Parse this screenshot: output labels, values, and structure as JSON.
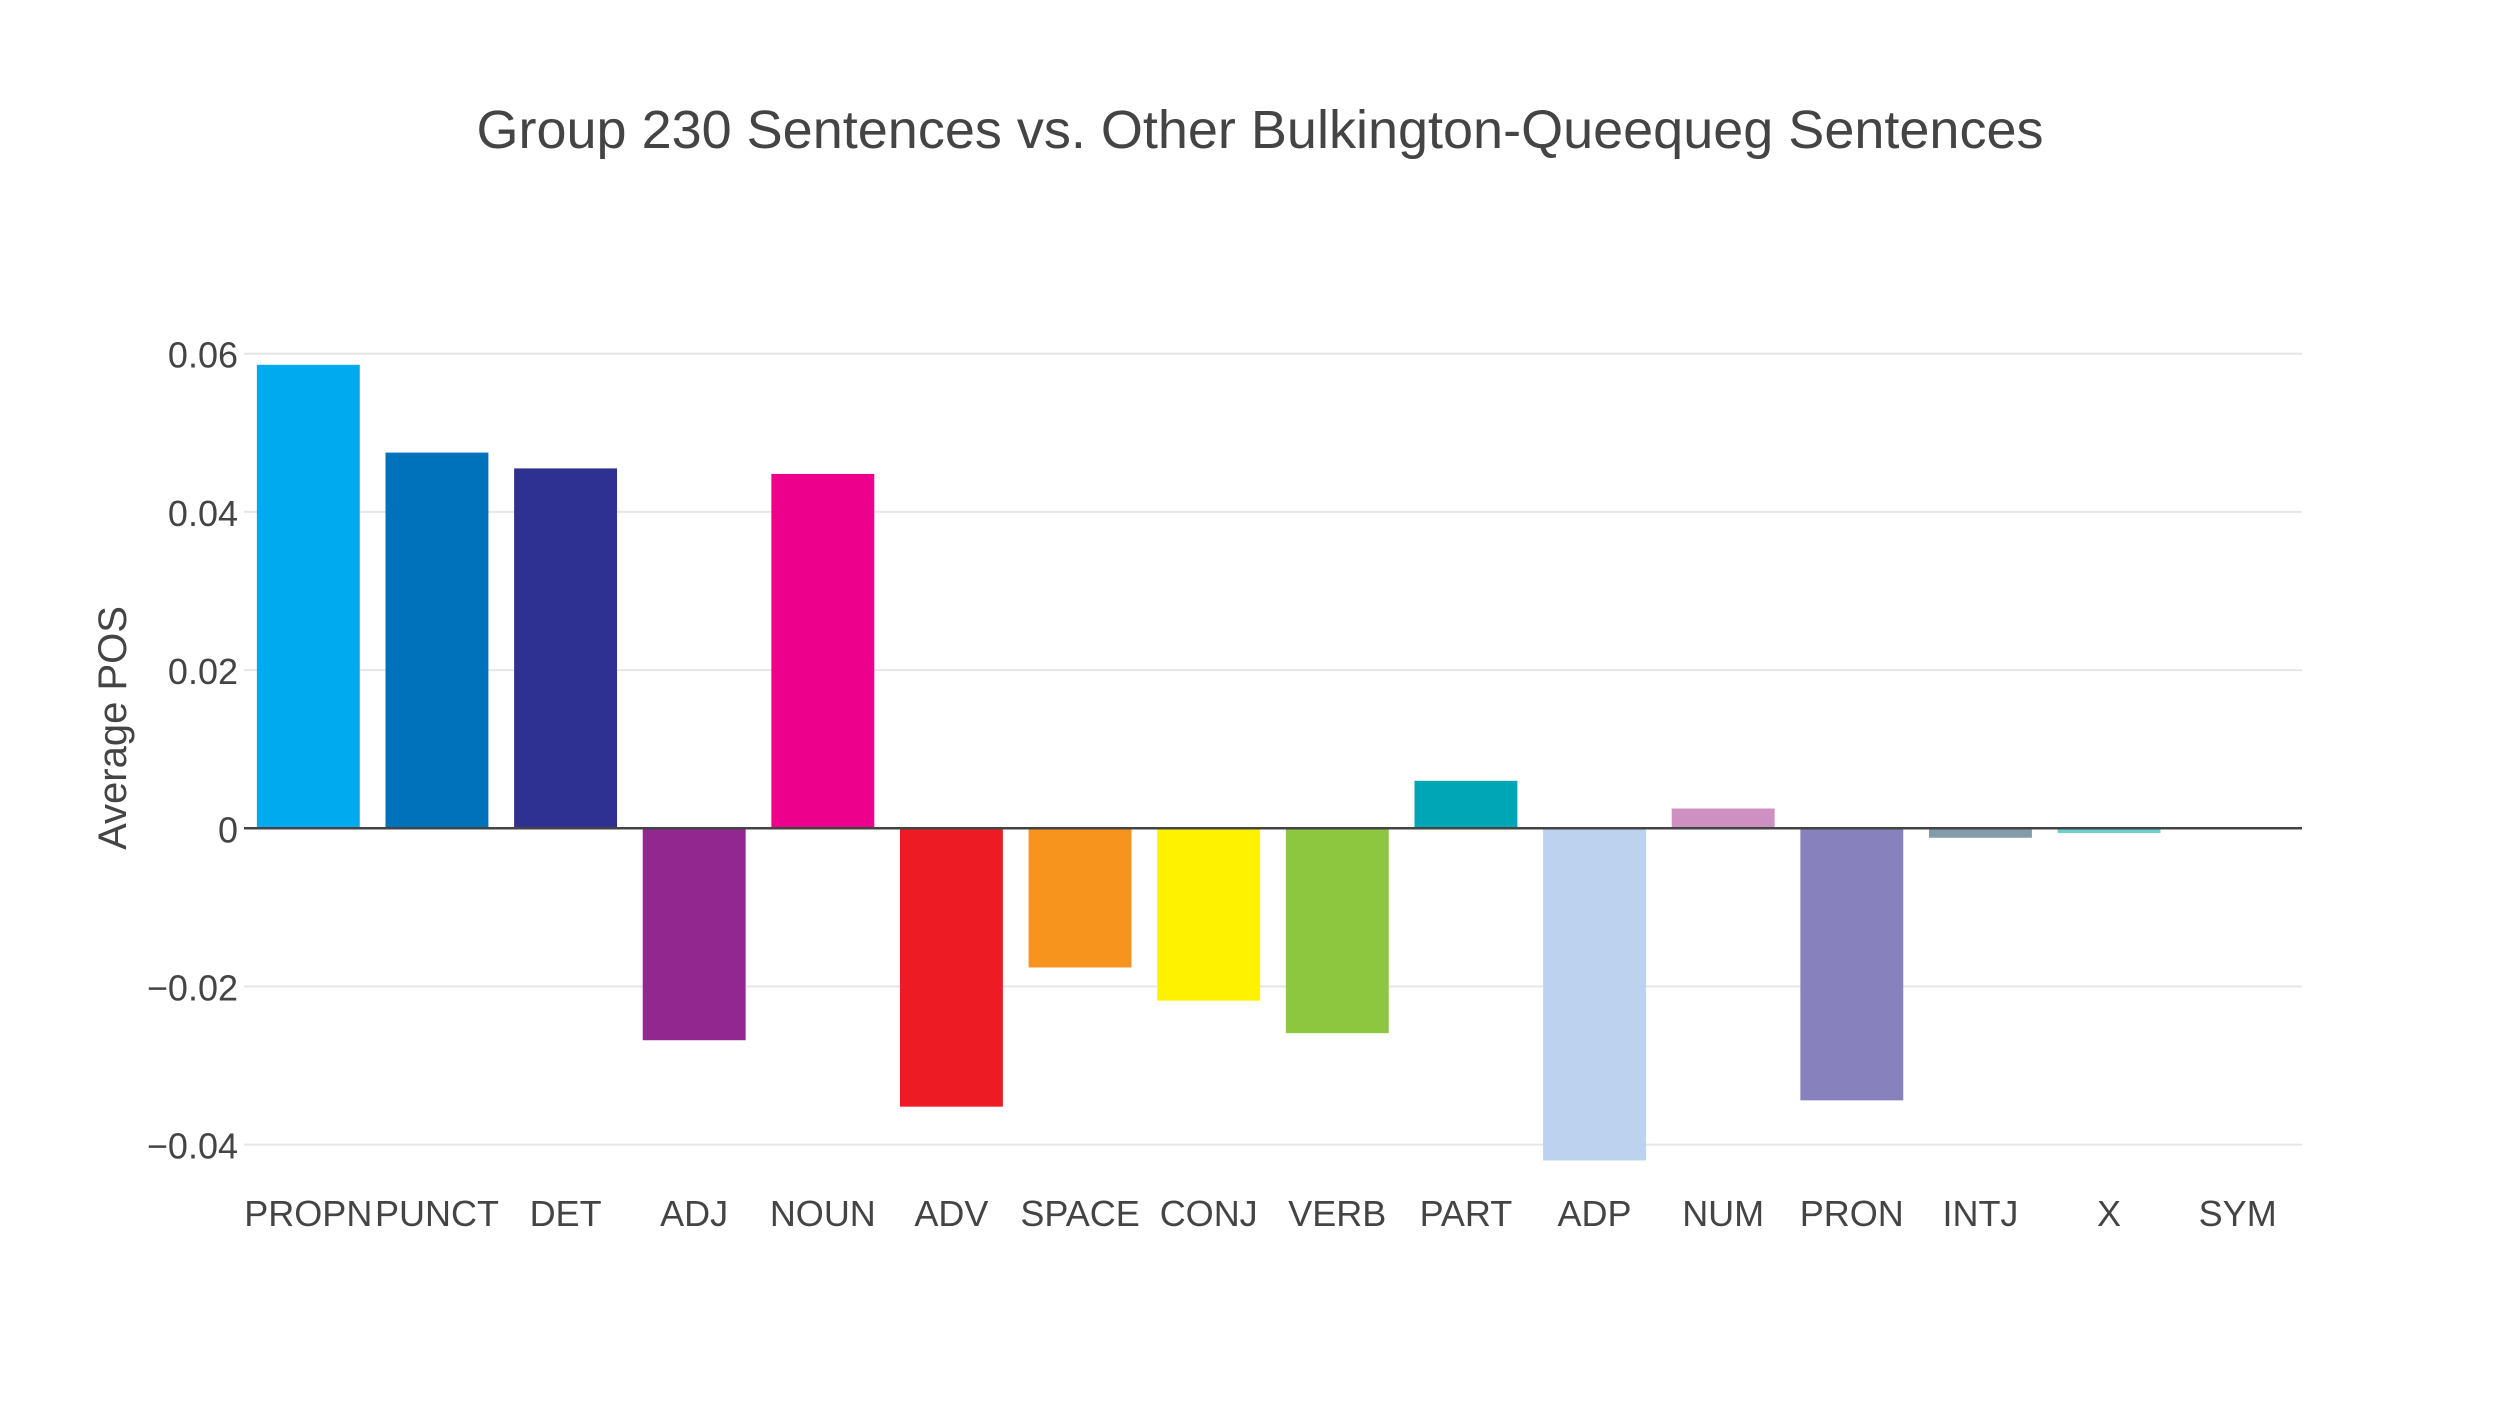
{
  "chart_data": {
    "type": "bar",
    "title": "Group 230 Sentences vs. Other Bulkington-Queequeg Sentences",
    "xlabel": "",
    "ylabel": "Average POS",
    "ylim": [
      -0.047,
      0.063
    ],
    "yticks": [
      0.06,
      0.04,
      0.02,
      0,
      -0.02,
      -0.04
    ],
    "ytick_labels": [
      "0.06",
      "0.04",
      "0.02",
      "0",
      "−0.02",
      "−0.04"
    ],
    "grid": true,
    "legend": "none",
    "categories": [
      "PROPN",
      "PUNCT",
      "DET",
      "ADJ",
      "NOUN",
      "ADV",
      "SPACE",
      "CONJ",
      "VERB",
      "PART",
      "ADP",
      "NUM",
      "PRON",
      "INTJ",
      "X",
      "SYM"
    ],
    "values": [
      0.0586,
      0.0475,
      0.0455,
      -0.0268,
      0.0448,
      -0.0352,
      -0.0176,
      -0.0218,
      -0.0259,
      0.006,
      -0.042,
      0.0025,
      -0.0344,
      -0.0012,
      -0.0006,
      0
    ],
    "colors": [
      "#00aaee",
      "#0072bb",
      "#2e3192",
      "#92278f",
      "#ec008c",
      "#ed1c24",
      "#f7941d",
      "#fff200",
      "#8dc63f",
      "#00a6b6",
      "#bdd2ee",
      "#cd90c1",
      "#8781bd",
      "#829caa",
      "#6dcfd6",
      "#cccccc"
    ]
  }
}
